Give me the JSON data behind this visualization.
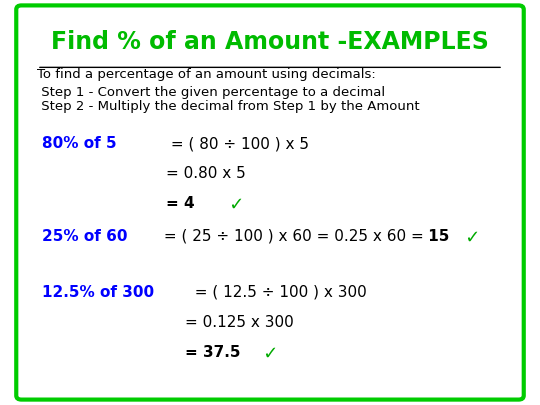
{
  "title": "Find % of an Amount -EXAMPLES",
  "title_color": "#00bb00",
  "bg_color": "#ffffff",
  "border_color": "#00cc00",
  "black": "#000000",
  "blue": "#0000ff",
  "green": "#00aa00",
  "intro_underline": "To find a percentage of an amount using decimals:",
  "step1": " Step 1 - Convert the given percentage to a decimal",
  "step2": " Step 2 - Multiply the decimal from Step 1 by the Amount",
  "ex1_blue": "80% of 5",
  "ex1_black1": " = ( 80 ÷ 100 ) x 5",
  "ex1_black2": "= 0.80 x 5",
  "ex1_bold": "= 4",
  "ex1_check": " ✓",
  "ex2_blue": "25% of 60",
  "ex2_black": " = ( 25 ÷ 100 ) x 60 = 0.25 x 60 =",
  "ex2_bold": " 15",
  "ex2_check": " ✓",
  "ex3_blue": "12.5% of 300",
  "ex3_black1": "  = ( 12.5 ÷ 100 ) x 300",
  "ex3_black2": "= 0.125 x 300",
  "ex3_bold": "= 37.5",
  "ex3_check": " ✓"
}
